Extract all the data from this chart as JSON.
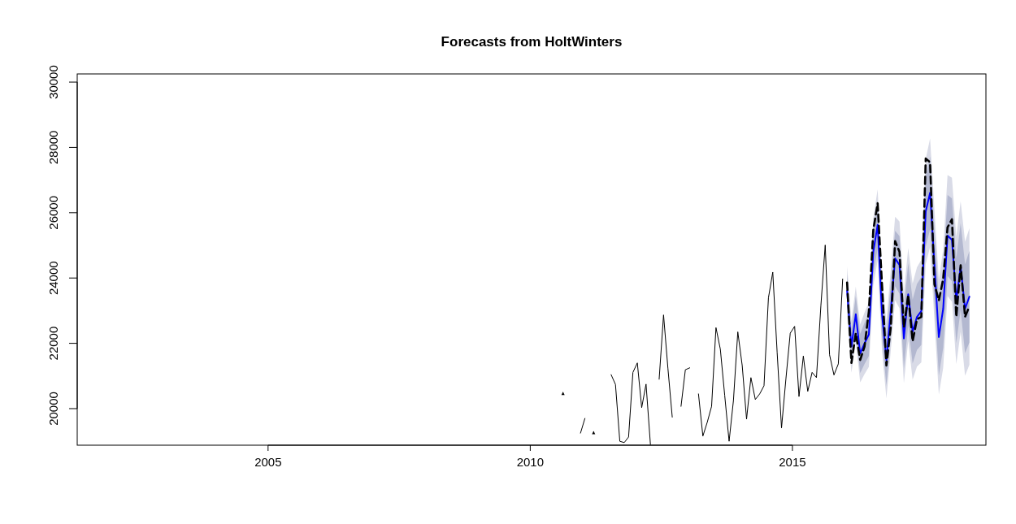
{
  "chart_data": {
    "type": "line",
    "title": "Forecasts from HoltWinters",
    "xlim": [
      2001.36,
      2018.69
    ],
    "ylim": [
      18880,
      30250
    ],
    "xticks": [
      2005,
      2010,
      2015
    ],
    "yticks": [
      20000,
      22000,
      24000,
      26000,
      28000,
      30000
    ],
    "grid": false,
    "series": [
      {
        "type": "line",
        "color": "#d9dbe7",
        "x": [
          2016.042,
          2016.125,
          2016.208,
          2016.292,
          2016.375,
          2016.458,
          2016.542,
          2016.625,
          2016.708,
          2016.792,
          2016.875,
          2016.958,
          2017.042,
          2017.125,
          2017.208,
          2017.292,
          2017.375,
          2017.458,
          2017.542,
          2017.625,
          2017.708,
          2017.792,
          2017.875,
          2017.958,
          2018.042,
          2018.125,
          2018.208,
          2018.292,
          2018.375
        ],
        "values": [
          null,
          null,
          null,
          null,
          null,
          null,
          null,
          null,
          null,
          null,
          null,
          null,
          null,
          null,
          null,
          null,
          null,
          null,
          null,
          null,
          null,
          null,
          null,
          null,
          null,
          null,
          null,
          null,
          null
        ],
        "lower": [
          22860,
          21100,
          22040,
          20800,
          21060,
          21280,
          23760,
          24540,
          21770,
          20310,
          21770,
          23320,
          23070,
          20780,
          22080,
          20890,
          21290,
          21420,
          24430,
          24950,
          22690,
          20430,
          21250,
          23450,
          23270,
          21360,
          22350,
          21010,
          21340
        ],
        "upper": [
          24360,
          22700,
          23740,
          22580,
          22940,
          23260,
          25840,
          26720,
          24030,
          22670,
          24230,
          25880,
          25730,
          23520,
          24920,
          23830,
          24330,
          24560,
          27650,
          28270,
          26110,
          23950,
          24870,
          27150,
          27070,
          25260,
          26350,
          25110,
          25520
        ]
      },
      {
        "type": "line",
        "color": "#000000",
        "line_style": "solid",
        "marker": "triangle",
        "x": [
          2010.625
        ],
        "values": [
          20490
        ]
      },
      {
        "type": "line",
        "color": "#000000",
        "line_style": "solid",
        "x": [
          2010.958,
          2011.042
        ],
        "values": [
          19250,
          19700
        ]
      },
      {
        "type": "line",
        "color": "#000000",
        "line_style": "solid",
        "marker": "triangle",
        "x": [
          2011.208
        ],
        "values": [
          19290
        ]
      },
      {
        "type": "line",
        "color": "#000000",
        "line_style": "solid",
        "x": [
          2011.542,
          2011.625,
          2011.708,
          2011.792,
          2011.875,
          2011.958,
          2012.042,
          2012.125,
          2012.208,
          2012.292
        ],
        "values": [
          21040,
          20740,
          19000,
          18960,
          19130,
          21110,
          21400,
          20030,
          20750,
          18900
        ]
      },
      {
        "type": "line",
        "color": "#000000",
        "line_style": "solid",
        "x": [
          2012.458,
          2012.542,
          2012.625,
          2012.708
        ],
        "values": [
          20900,
          22870,
          21240,
          19740
        ]
      },
      {
        "type": "line",
        "color": "#000000",
        "line_style": "solid",
        "x": [
          2012.875,
          2012.958,
          2013.042
        ],
        "values": [
          20070,
          21190,
          21250
        ]
      },
      {
        "type": "line",
        "color": "#000000",
        "line_style": "solid",
        "x": [
          2013.208,
          2013.292,
          2013.375,
          2013.458,
          2013.542,
          2013.625,
          2013.708,
          2013.792,
          2013.875,
          2013.958,
          2014.042,
          2014.125,
          2014.208,
          2014.292,
          2014.375,
          2014.458,
          2014.542,
          2014.625,
          2014.708,
          2014.792,
          2014.875,
          2014.958,
          2015.042,
          2015.125,
          2015.208,
          2015.292,
          2015.375,
          2015.458,
          2015.542,
          2015.625,
          2015.708,
          2015.792,
          2015.875,
          2015.958
        ],
        "values": [
          20450,
          19160,
          19580,
          20070,
          22480,
          21820,
          20410,
          19000,
          20250,
          22350,
          21320,
          19680,
          20950,
          20280,
          20450,
          20700,
          23390,
          24180,
          21730,
          19410,
          20900,
          22310,
          22520,
          20370,
          21610,
          20530,
          21110,
          20950,
          23140,
          25010,
          21650,
          21030,
          21370,
          23970
        ]
      },
      {
        "type": "line",
        "color": "#0000ff",
        "line_style": "solid",
        "x": [
          2016.042,
          2016.125,
          2016.208,
          2016.292,
          2016.375,
          2016.458,
          2016.542,
          2016.625,
          2016.708,
          2016.792,
          2016.875,
          2016.958,
          2017.042,
          2017.125,
          2017.208,
          2017.292,
          2017.375,
          2017.458,
          2017.542,
          2017.625,
          2017.708,
          2017.792,
          2017.875,
          2017.958,
          2018.042,
          2018.125,
          2018.208,
          2018.292,
          2018.375
        ],
        "values": [
          23610,
          21900,
          22890,
          21690,
          22000,
          22270,
          24800,
          25630,
          22900,
          21490,
          23000,
          24600,
          24400,
          22150,
          23500,
          22360,
          22810,
          22990,
          26040,
          26610,
          24400,
          22190,
          23060,
          25300,
          25170,
          23310,
          24350,
          23060,
          23430
        ],
        "lower": [
          23110,
          21370,
          22330,
          21090,
          21370,
          21610,
          24110,
          24910,
          22140,
          20700,
          22180,
          23750,
          23520,
          21230,
          22550,
          21380,
          21800,
          21950,
          24960,
          25500,
          23260,
          21020,
          21860,
          24060,
          23900,
          22010,
          23020,
          21700,
          22030
        ],
        "upper": [
          24110,
          22430,
          23450,
          22290,
          22630,
          22930,
          25490,
          26350,
          23660,
          22280,
          23820,
          25450,
          25280,
          23070,
          24450,
          23340,
          23820,
          24030,
          27120,
          27720,
          25540,
          23360,
          24260,
          26540,
          26440,
          24610,
          25680,
          24420,
          24830
        ]
      },
      {
        "type": "line",
        "color": "#000000",
        "line_style": "dashed",
        "x": [
          2016.042,
          2016.125,
          2016.208,
          2016.292,
          2016.375,
          2016.458,
          2016.542,
          2016.625,
          2016.708,
          2016.792,
          2016.875,
          2016.958,
          2017.042,
          2017.125,
          2017.208,
          2017.292,
          2017.375,
          2017.458,
          2017.542,
          2017.625,
          2017.708,
          2017.792,
          2017.875,
          2017.958,
          2018.042,
          2018.125,
          2018.208,
          2018.292,
          2018.375
        ],
        "values": [
          23860,
          21400,
          22310,
          21490,
          21900,
          22990,
          25470,
          26290,
          23810,
          21320,
          22490,
          25130,
          24800,
          22490,
          23480,
          22060,
          22740,
          22810,
          27660,
          27540,
          23810,
          23310,
          23970,
          25550,
          25800,
          22810,
          24390,
          22810,
          23140
        ]
      }
    ]
  }
}
